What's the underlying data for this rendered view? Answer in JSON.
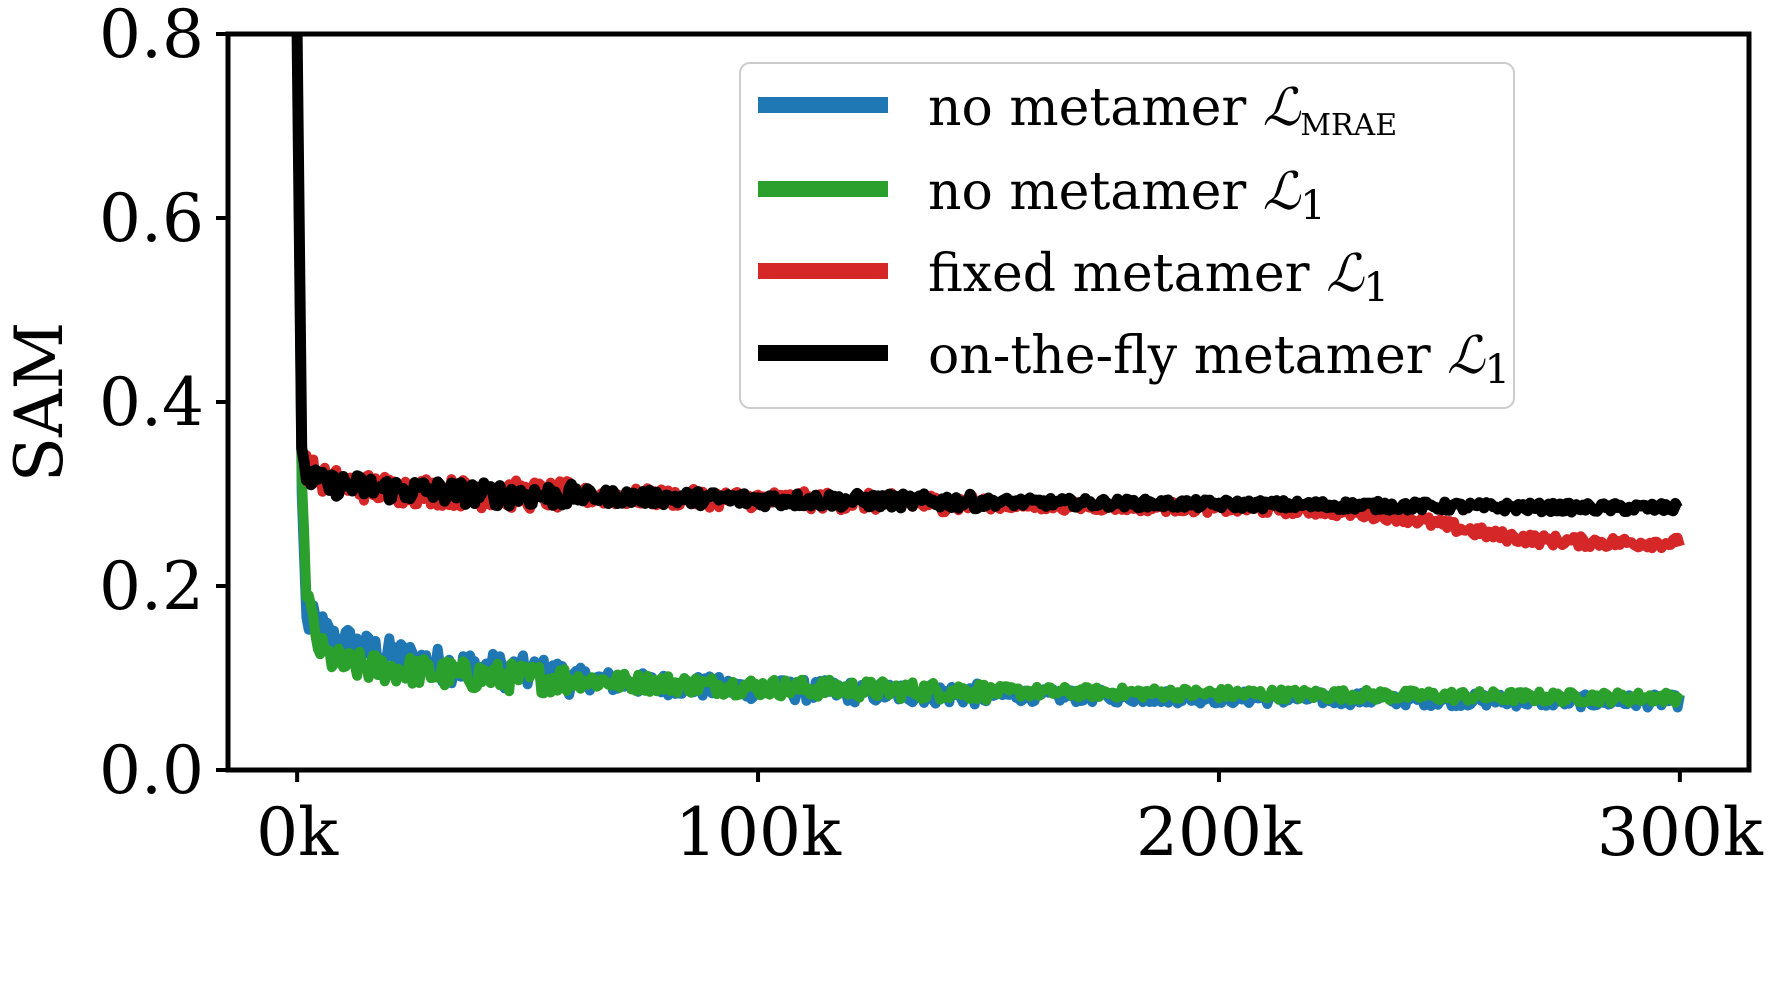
{
  "chart_data": {
    "type": "line",
    "title": "",
    "xlabel": "",
    "ylabel": "SAM",
    "xlim": [
      -15,
      315
    ],
    "ylim": [
      0.0,
      0.8
    ],
    "x_unit": "k",
    "xticks": [
      {
        "value": 0,
        "label": "0k"
      },
      {
        "value": 100,
        "label": "100k"
      },
      {
        "value": 200,
        "label": "200k"
      },
      {
        "value": 300,
        "label": "300k"
      }
    ],
    "yticks": [
      {
        "value": 0.0,
        "label": "0.0"
      },
      {
        "value": 0.2,
        "label": "0.2"
      },
      {
        "value": 0.4,
        "label": "0.4"
      },
      {
        "value": 0.6,
        "label": "0.6"
      },
      {
        "value": 0.8,
        "label": "0.8"
      }
    ],
    "legend_position": "top-right",
    "series": [
      {
        "name": "no metamer L_MRAE",
        "legend_main": "no metamer ",
        "legend_symbol": "ℒ",
        "legend_sub": "MRAE",
        "color": "#1f77b4",
        "x": [
          0,
          1,
          2,
          4,
          6,
          8,
          10,
          15,
          20,
          25,
          30,
          40,
          50,
          60,
          70,
          80,
          90,
          100,
          120,
          140,
          160,
          180,
          200,
          220,
          240,
          260,
          280,
          300
        ],
        "values": [
          0.8,
          0.3,
          0.16,
          0.16,
          0.15,
          0.14,
          0.14,
          0.13,
          0.125,
          0.12,
          0.115,
          0.11,
          0.105,
          0.1,
          0.095,
          0.093,
          0.09,
          0.088,
          0.085,
          0.083,
          0.081,
          0.08,
          0.079,
          0.078,
          0.077,
          0.076,
          0.075,
          0.075
        ],
        "noise": 0.012
      },
      {
        "name": "no metamer L_1",
        "legend_main": "no metamer ",
        "legend_symbol": "ℒ",
        "legend_sub": "1",
        "color": "#2ca02c",
        "x": [
          0,
          1,
          2,
          4,
          6,
          8,
          10,
          15,
          20,
          25,
          30,
          40,
          50,
          60,
          70,
          80,
          90,
          100,
          120,
          140,
          160,
          180,
          200,
          220,
          240,
          260,
          280,
          300
        ],
        "values": [
          0.8,
          0.32,
          0.2,
          0.14,
          0.125,
          0.12,
          0.115,
          0.112,
          0.11,
          0.108,
          0.105,
          0.102,
          0.1,
          0.098,
          0.096,
          0.094,
          0.092,
          0.09,
          0.088,
          0.086,
          0.085,
          0.084,
          0.083,
          0.082,
          0.081,
          0.08,
          0.079,
          0.079
        ],
        "noise": 0.01
      },
      {
        "name": "fixed metamer L_1",
        "legend_main": "fixed metamer ",
        "legend_symbol": "ℒ",
        "legend_sub": "1",
        "color": "#d62728",
        "x": [
          0,
          1,
          2,
          4,
          6,
          10,
          20,
          30,
          40,
          60,
          80,
          100,
          120,
          140,
          160,
          180,
          200,
          220,
          230,
          240,
          250,
          260,
          270,
          280,
          290,
          300
        ],
        "values": [
          0.8,
          0.35,
          0.33,
          0.32,
          0.315,
          0.31,
          0.305,
          0.303,
          0.3,
          0.298,
          0.296,
          0.294,
          0.292,
          0.29,
          0.288,
          0.287,
          0.285,
          0.283,
          0.28,
          0.275,
          0.265,
          0.255,
          0.25,
          0.248,
          0.247,
          0.247
        ],
        "noise": 0.01
      },
      {
        "name": "on-the-fly metamer L_1",
        "legend_main": "on-the-fly metamer ",
        "legend_symbol": "ℒ",
        "legend_sub": "1",
        "color": "#000000",
        "x": [
          0,
          1,
          2,
          4,
          6,
          10,
          20,
          30,
          40,
          60,
          80,
          100,
          120,
          140,
          160,
          180,
          200,
          220,
          240,
          260,
          280,
          300
        ],
        "values": [
          0.8,
          0.35,
          0.32,
          0.315,
          0.31,
          0.31,
          0.305,
          0.303,
          0.3,
          0.298,
          0.296,
          0.294,
          0.293,
          0.292,
          0.291,
          0.29,
          0.289,
          0.288,
          0.287,
          0.286,
          0.285,
          0.285
        ],
        "noise": 0.008
      }
    ]
  }
}
